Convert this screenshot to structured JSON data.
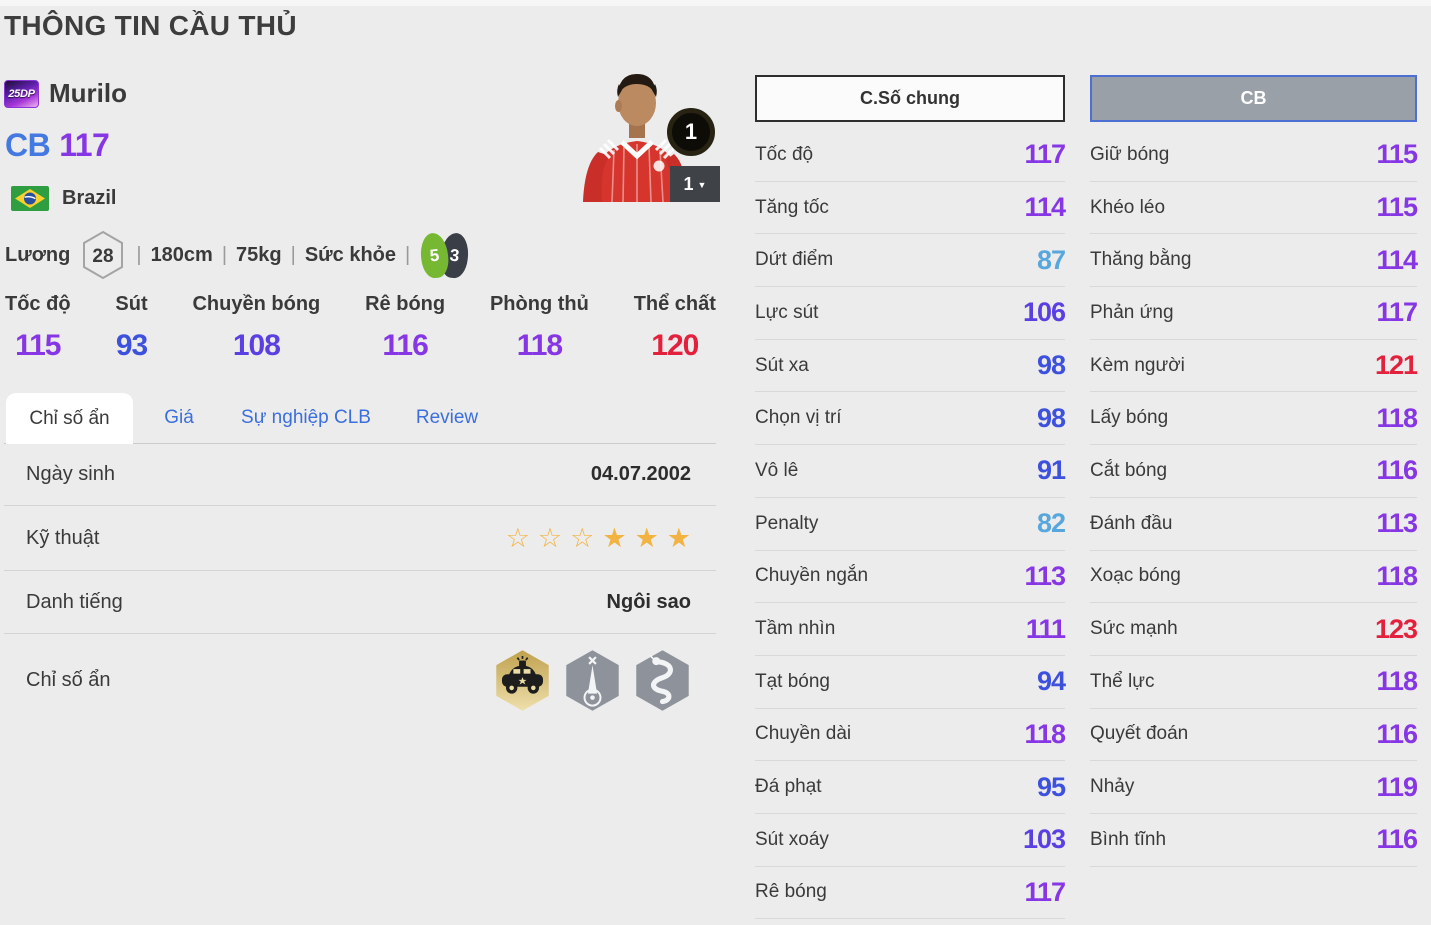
{
  "page": {
    "title": "THÔNG TIN CẦU THỦ"
  },
  "player": {
    "season_badge": "25DP",
    "name": "Murilo",
    "position": "CB",
    "rating": "117",
    "nation": "Brazil",
    "salary_label": "Lương",
    "salary": "28",
    "height": "180cm",
    "weight": "75kg",
    "health_label": "Sức khỏe",
    "foot_left": "5",
    "foot_right": "3",
    "level_badge": "1",
    "level_select": "1"
  },
  "summary_stats": [
    {
      "label": "Tốc độ",
      "value": "115",
      "tier": "purple"
    },
    {
      "label": "Sút",
      "value": "93",
      "tier": "blue"
    },
    {
      "label": "Chuyền bóng",
      "value": "108",
      "tier": "violet"
    },
    {
      "label": "Rê bóng",
      "value": "116",
      "tier": "purple"
    },
    {
      "label": "Phòng thủ",
      "value": "118",
      "tier": "purple"
    },
    {
      "label": "Thể chất",
      "value": "120",
      "tier": "red"
    }
  ],
  "tabs": [
    {
      "label": "Chỉ số ẩn",
      "active": true
    },
    {
      "label": "Giá",
      "active": false
    },
    {
      "label": "Sự nghiệp CLB",
      "active": false
    },
    {
      "label": "Review",
      "active": false
    }
  ],
  "info": {
    "dob_label": "Ngày sinh",
    "dob": "04.07.2002",
    "skill_label": "Kỹ thuật",
    "skill_stars_empty": 3,
    "skill_stars_filled": 3,
    "fame_label": "Danh tiếng",
    "fame": "Ngôi sao",
    "hidden_label": "Chỉ số ẩn",
    "hidden_icons": [
      "police-car-trait-icon",
      "obelisk-ball-trait-icon",
      "snake-trait-icon"
    ]
  },
  "panels": {
    "general": {
      "header": "C.Số chung",
      "stats": [
        {
          "label": "Tốc độ",
          "value": "117",
          "tier": "purple"
        },
        {
          "label": "Tăng tốc",
          "value": "114",
          "tier": "purple"
        },
        {
          "label": "Dứt điểm",
          "value": "87",
          "tier": "lightblue"
        },
        {
          "label": "Lực sút",
          "value": "106",
          "tier": "violet"
        },
        {
          "label": "Sút xa",
          "value": "98",
          "tier": "blue"
        },
        {
          "label": "Chọn vị trí",
          "value": "98",
          "tier": "blue"
        },
        {
          "label": "Vô lê",
          "value": "91",
          "tier": "blue"
        },
        {
          "label": "Penalty",
          "value": "82",
          "tier": "lightblue"
        },
        {
          "label": "Chuyền ngắn",
          "value": "113",
          "tier": "purple"
        },
        {
          "label": "Tầm nhìn",
          "value": "111",
          "tier": "purple"
        },
        {
          "label": "Tạt bóng",
          "value": "94",
          "tier": "blue"
        },
        {
          "label": "Chuyền dài",
          "value": "118",
          "tier": "purple"
        },
        {
          "label": "Đá phạt",
          "value": "95",
          "tier": "blue"
        },
        {
          "label": "Sút xoáy",
          "value": "103",
          "tier": "violet"
        },
        {
          "label": "Rê bóng",
          "value": "117",
          "tier": "purple"
        }
      ]
    },
    "position": {
      "header": "CB",
      "stats": [
        {
          "label": "Giữ bóng",
          "value": "115",
          "tier": "purple"
        },
        {
          "label": "Khéo léo",
          "value": "115",
          "tier": "purple"
        },
        {
          "label": "Thăng bằng",
          "value": "114",
          "tier": "purple"
        },
        {
          "label": "Phản ứng",
          "value": "117",
          "tier": "purple"
        },
        {
          "label": "Kèm người",
          "value": "121",
          "tier": "red"
        },
        {
          "label": "Lấy bóng",
          "value": "118",
          "tier": "purple"
        },
        {
          "label": "Cắt bóng",
          "value": "116",
          "tier": "purple"
        },
        {
          "label": "Đánh đầu",
          "value": "113",
          "tier": "purple"
        },
        {
          "label": "Xoạc bóng",
          "value": "118",
          "tier": "purple"
        },
        {
          "label": "Sức mạnh",
          "value": "123",
          "tier": "red"
        },
        {
          "label": "Thể lực",
          "value": "118",
          "tier": "purple"
        },
        {
          "label": "Quyết đoán",
          "value": "116",
          "tier": "purple"
        },
        {
          "label": "Nhảy",
          "value": "119",
          "tier": "purple"
        },
        {
          "label": "Bình tĩnh",
          "value": "116",
          "tier": "purple"
        }
      ]
    }
  },
  "colors": {
    "lightblue": "#58a7dc",
    "blue": "#3d51dd",
    "violet": "#5a3fe2",
    "purple": "#8636e4",
    "red": "#e4213c",
    "star": "#f2b343",
    "tab_link": "#3b6fdd",
    "position_blue": "#4479e2",
    "rating_purple": "#8636e4"
  }
}
